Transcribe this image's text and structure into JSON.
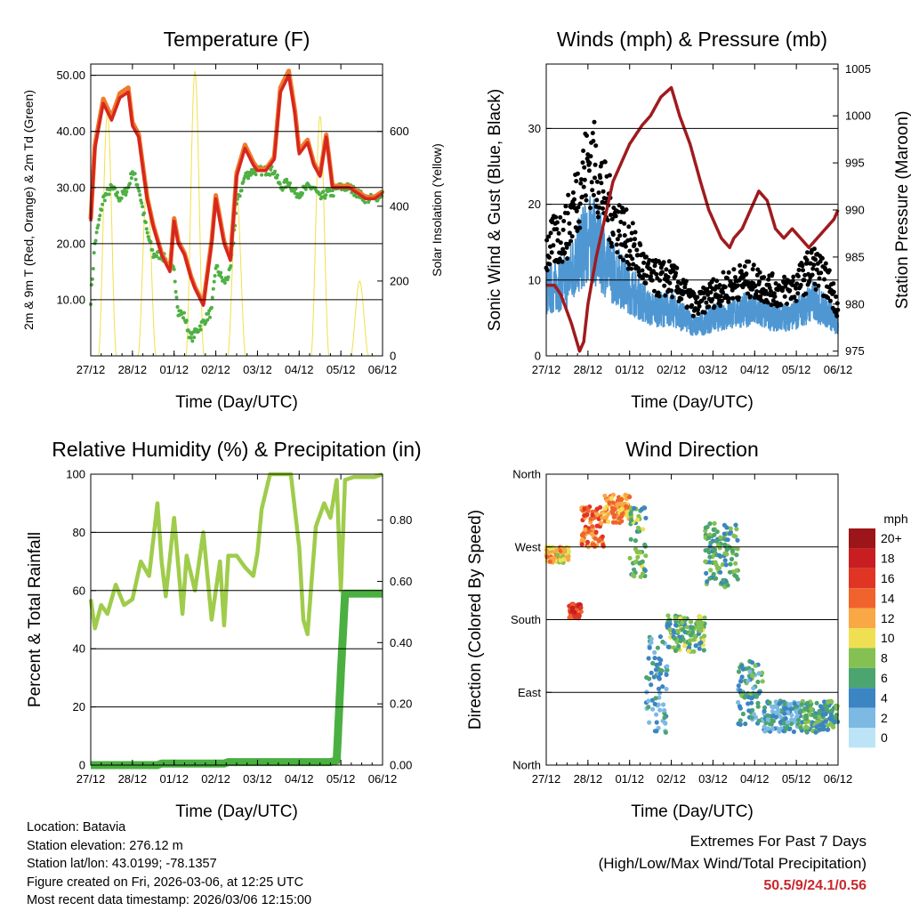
{
  "chart_data": [
    {
      "type": "line",
      "title": "Temperature (F)",
      "xlabel": "Time (Day/UTC)",
      "ylabel": "2m & 9m T (Red, Orange) & 2m Td (Green)",
      "y2label": "Solar Insolation (Yellow)",
      "ylim": [
        0,
        52
      ],
      "y2lim": [
        0,
        780
      ],
      "yticks": [
        "10.00",
        "20.00",
        "30.00",
        "40.00",
        "50.00"
      ],
      "y2ticks": [
        "0",
        "200",
        "400",
        "600"
      ],
      "categories": [
        "27/12",
        "28/12",
        "01/12",
        "02/12",
        "03/12",
        "04/12",
        "05/12",
        "06/12"
      ],
      "x": [
        0,
        0.1,
        0.3,
        0.5,
        0.7,
        0.9,
        1.0,
        1.15,
        1.35,
        1.5,
        1.7,
        1.9,
        2.0,
        2.1,
        2.25,
        2.4,
        2.5,
        2.7,
        2.9,
        3.0,
        3.2,
        3.35,
        3.5,
        3.7,
        3.9,
        4.0,
        4.2,
        4.4,
        4.55,
        4.75,
        4.9,
        5.0,
        5.2,
        5.35,
        5.5,
        5.65,
        5.8,
        5.95,
        6.2,
        6.4,
        6.6,
        6.8,
        7.0
      ],
      "series": [
        {
          "name": "2m T",
          "color": "#d7261f",
          "values": [
            24,
            37,
            45,
            42,
            46,
            47,
            41,
            39,
            28,
            23,
            18,
            15,
            24,
            20,
            18,
            14,
            12,
            9,
            20,
            28,
            20,
            17,
            32,
            37,
            34,
            33,
            33,
            35,
            47,
            50,
            43,
            36,
            38,
            34,
            32,
            39,
            30,
            30,
            30,
            29,
            28,
            28,
            29
          ]
        },
        {
          "name": "9m T",
          "color": "#f07a2a",
          "values": [
            24.4,
            37.6,
            45.8,
            42.6,
            46.8,
            47.8,
            41.6,
            39.5,
            28.4,
            23.3,
            18.3,
            15.3,
            24.5,
            20.4,
            18.3,
            14.3,
            12.3,
            9.3,
            20.5,
            28.6,
            20.4,
            17.4,
            32.6,
            37.6,
            34.5,
            33.4,
            33.3,
            35.4,
            47.8,
            50.8,
            43.6,
            36.6,
            38.5,
            34.4,
            32.3,
            39.4,
            30.3,
            30.3,
            30.3,
            29.3,
            28.3,
            28.3,
            29.3
          ]
        },
        {
          "name": "2m Td",
          "color": "#4fb043",
          "values": [
            10,
            20,
            28,
            30,
            28,
            30,
            33,
            30,
            22,
            18,
            18,
            16,
            15,
            8,
            7,
            3,
            4,
            6,
            8,
            16,
            13,
            15,
            27,
            32,
            33,
            33,
            33,
            33,
            30,
            31,
            29,
            29,
            30,
            30,
            28,
            29,
            29,
            30,
            30,
            29,
            28,
            28,
            29
          ]
        },
        {
          "name": "Solar Insolation",
          "color": "#f2df4a",
          "axis": "y2",
          "peaks": [
            {
              "x": 0.4,
              "value": 650
            },
            {
              "x": 1.35,
              "value": 460
            },
            {
              "x": 2.5,
              "value": 760
            },
            {
              "x": 3.5,
              "value": 430
            },
            {
              "x": 5.5,
              "value": 640
            },
            {
              "x": 6.45,
              "value": 200
            }
          ]
        }
      ]
    },
    {
      "type": "scatter",
      "title": "Winds (mph) & Pressure (mb)",
      "xlabel": "Time (Day/UTC)",
      "ylabel": "Sonic Wind & Gust (Blue, Black)",
      "y2label": "Station Pressure (Maroon)",
      "ylim": [
        0,
        38.5
      ],
      "y2lim": [
        974.5,
        1005.5
      ],
      "yticks": [
        "0",
        "10",
        "20",
        "30"
      ],
      "y2ticks": [
        "975",
        "980",
        "985",
        "990",
        "995",
        "1000",
        "1005"
      ],
      "categories": [
        "27/12",
        "28/12",
        "01/12",
        "02/12",
        "03/12",
        "04/12",
        "05/12",
        "06/12"
      ],
      "gust_envelope": {
        "x": [
          0,
          0.5,
          0.9,
          1.1,
          1.5,
          2.0,
          2.5,
          3.0,
          3.3,
          3.6,
          4.0,
          4.4,
          4.8,
          5.2,
          5.6,
          6.0,
          6.4,
          6.8,
          7.0
        ],
        "values": [
          15,
          18,
          26,
          28,
          21,
          16,
          11,
          11,
          9,
          7,
          9,
          10,
          11,
          10,
          9,
          10,
          13,
          10,
          7
        ]
      },
      "pressure": {
        "x": [
          0,
          0.2,
          0.35,
          0.6,
          0.8,
          0.9,
          1.0,
          1.2,
          1.4,
          1.6,
          1.8,
          2.0,
          2.3,
          2.5,
          2.75,
          3.0,
          3.2,
          3.45,
          3.7,
          3.9,
          4.2,
          4.4,
          4.5,
          4.7,
          4.9,
          5.1,
          5.3,
          5.5,
          5.7,
          5.9,
          6.1,
          6.3,
          6.5,
          6.7,
          6.9,
          7.0
        ],
        "values": [
          982,
          982,
          981,
          978,
          975,
          976,
          980,
          985,
          989,
          993,
          995,
          997,
          999,
          1000,
          1002,
          1003,
          1000,
          997,
          993,
          990,
          987,
          986,
          987,
          988,
          990,
          992,
          991,
          988,
          987,
          988,
          987,
          986,
          987,
          988,
          989,
          990
        ]
      }
    },
    {
      "type": "line",
      "title": "Relative Humidity (%) & Precipitation (in)",
      "xlabel": "Time (Day/UTC)",
      "ylabel": "Percent & Total Rainfall",
      "ylim": [
        0,
        100
      ],
      "y2lim": [
        0,
        0.95
      ],
      "yticks": [
        "0",
        "20",
        "40",
        "60",
        "80",
        "100"
      ],
      "y2ticks": [
        "0.00",
        "0.20",
        "0.40",
        "0.60",
        "0.80"
      ],
      "categories": [
        "27/12",
        "28/12",
        "01/12",
        "02/12",
        "03/12",
        "04/12",
        "05/12",
        "06/12"
      ],
      "x": [
        0,
        0.1,
        0.25,
        0.4,
        0.6,
        0.8,
        1.0,
        1.2,
        1.4,
        1.6,
        1.7,
        1.8,
        2.0,
        2.2,
        2.3,
        2.5,
        2.7,
        2.9,
        3.1,
        3.2,
        3.3,
        3.5,
        3.7,
        3.9,
        4.0,
        4.1,
        4.3,
        4.6,
        4.8,
        5.0,
        5.1,
        5.2,
        5.4,
        5.6,
        5.75,
        5.9,
        6.0,
        6.1,
        6.3,
        6.5,
        6.8,
        7.0
      ],
      "series": [
        {
          "name": "Relative Humidity",
          "color": "#9fcc4b",
          "values": [
            57,
            47,
            55,
            52,
            62,
            55,
            57,
            70,
            65,
            90,
            70,
            58,
            85,
            52,
            72,
            60,
            80,
            50,
            70,
            48,
            72,
            72,
            68,
            65,
            73,
            88,
            100,
            100,
            100,
            75,
            50,
            45,
            82,
            90,
            85,
            98,
            60,
            98,
            99,
            99,
            99,
            100
          ]
        },
        {
          "name": "Total Precipitation",
          "color": "#4ab041",
          "axis": "y2",
          "values": [
            0,
            0,
            0,
            0,
            0,
            0,
            0,
            0,
            0,
            0,
            0.005,
            0.005,
            0.005,
            0.005,
            0.005,
            0.005,
            0.005,
            0.005,
            0.005,
            0.005,
            0.01,
            0.01,
            0.01,
            0.01,
            0.01,
            0.01,
            0.01,
            0.01,
            0.01,
            0.01,
            0.01,
            0.01,
            0.01,
            0.01,
            0.01,
            0.015,
            0.3,
            0.56,
            0.56,
            0.56,
            0.56,
            0.56
          ]
        }
      ]
    },
    {
      "type": "scatter",
      "title": "Wind Direction",
      "xlabel": "Time (Day/UTC)",
      "ylabel": "Direction (Colored By Speed)",
      "ylim": [
        0,
        360
      ],
      "yticks": [
        "North",
        "East",
        "South",
        "West",
        "North"
      ],
      "categories": [
        "27/12",
        "28/12",
        "01/12",
        "02/12",
        "03/12",
        "04/12",
        "05/12",
        "06/12"
      ],
      "segments": [
        {
          "x": [
            0,
            0.55
          ],
          "dir": [
            250,
            270
          ],
          "speed": 11
        },
        {
          "x": [
            0.55,
            0.85
          ],
          "dir": [
            180,
            200
          ],
          "speed": 16
        },
        {
          "x": [
            0.85,
            1.4
          ],
          "dir": [
            270,
            320
          ],
          "speed": 14
        },
        {
          "x": [
            1.4,
            2.0
          ],
          "dir": [
            300,
            335
          ],
          "speed": 12
        },
        {
          "x": [
            2.0,
            2.4
          ],
          "dir": [
            230,
            320
          ],
          "speed": 7
        },
        {
          "x": [
            2.4,
            2.9
          ],
          "dir": [
            40,
            160
          ],
          "speed": 4
        },
        {
          "x": [
            2.9,
            3.8
          ],
          "dir": [
            140,
            185
          ],
          "speed": 7
        },
        {
          "x": [
            3.8,
            4.6
          ],
          "dir": [
            220,
            300
          ],
          "speed": 6
        },
        {
          "x": [
            4.6,
            5.2
          ],
          "dir": [
            50,
            130
          ],
          "speed": 5
        },
        {
          "x": [
            5.2,
            6.1
          ],
          "dir": [
            40,
            80
          ],
          "speed": 4
        },
        {
          "x": [
            6.1,
            7.0
          ],
          "dir": [
            40,
            80
          ],
          "speed": 6
        }
      ],
      "colorbar": {
        "title": "mph",
        "labels": [
          "20+",
          "18",
          "16",
          "14",
          "12",
          "10",
          "8",
          "6",
          "4",
          "2",
          "0"
        ],
        "colors": [
          "#9c1518",
          "#c81e21",
          "#e03524",
          "#f0632c",
          "#f8a844",
          "#efe053",
          "#85c152",
          "#4ca56e",
          "#3c85c3",
          "#7cbae4",
          "#bde4f6"
        ]
      }
    }
  ],
  "info": {
    "location": "Location: Batavia",
    "elevation": "Station elevation: 276.12 m",
    "latlon": "Station lat/lon: 43.0199; -78.1357",
    "created": "Figure created on Fri, 2026-03-06, at 12:25 UTC",
    "recent": "Most recent data timestamp: 2026/03/06 12:15:00"
  },
  "extremes": {
    "title": "Extremes For Past 7 Days",
    "subtitle": "(High/Low/Max Wind/Total Precipitation)",
    "values": "50.5/9/24.1/0.56"
  }
}
